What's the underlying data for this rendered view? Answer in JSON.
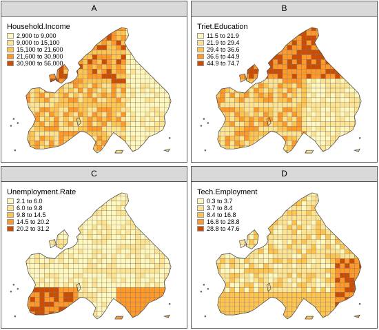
{
  "panels": [
    {
      "label": "A",
      "variable": "Household.Income",
      "classes": [
        "2,900 to 9,000",
        "9,000 to 15,100",
        "15,100 to 21,600",
        "21,600 to 30,900",
        "30,900 to 56,000"
      ],
      "hotspots": "north-west-central"
    },
    {
      "label": "B",
      "variable": "Triet.Education",
      "classes": [
        "11.5 to 21.9",
        "21.9 to 29.4",
        "29.4 to 36.6",
        "36.6 to 44.9",
        "44.9 to 74.7"
      ],
      "hotspots": "north"
    },
    {
      "label": "C",
      "variable": "Unemployment.Rate",
      "classes": [
        "2.1 to 6.0",
        "6.0 to 9.8",
        "9.8 to 14.5",
        "14.5 to 20.2",
        "20.2 to 31.2"
      ],
      "hotspots": "south"
    },
    {
      "label": "D",
      "variable": "Tech.Employment",
      "classes": [
        "0.3 to 3.7",
        "3.7 to 8.4",
        "8.4 to 16.8",
        "16.8 to 28.8",
        "28.8 to 47.6"
      ],
      "hotspots": "south-east"
    }
  ],
  "palette": [
    "#fff7bc",
    "#fee391",
    "#fec44f",
    "#fe9929",
    "#cc4c02"
  ],
  "border_color": "#555555",
  "header_bg": "#d9d9d9"
}
